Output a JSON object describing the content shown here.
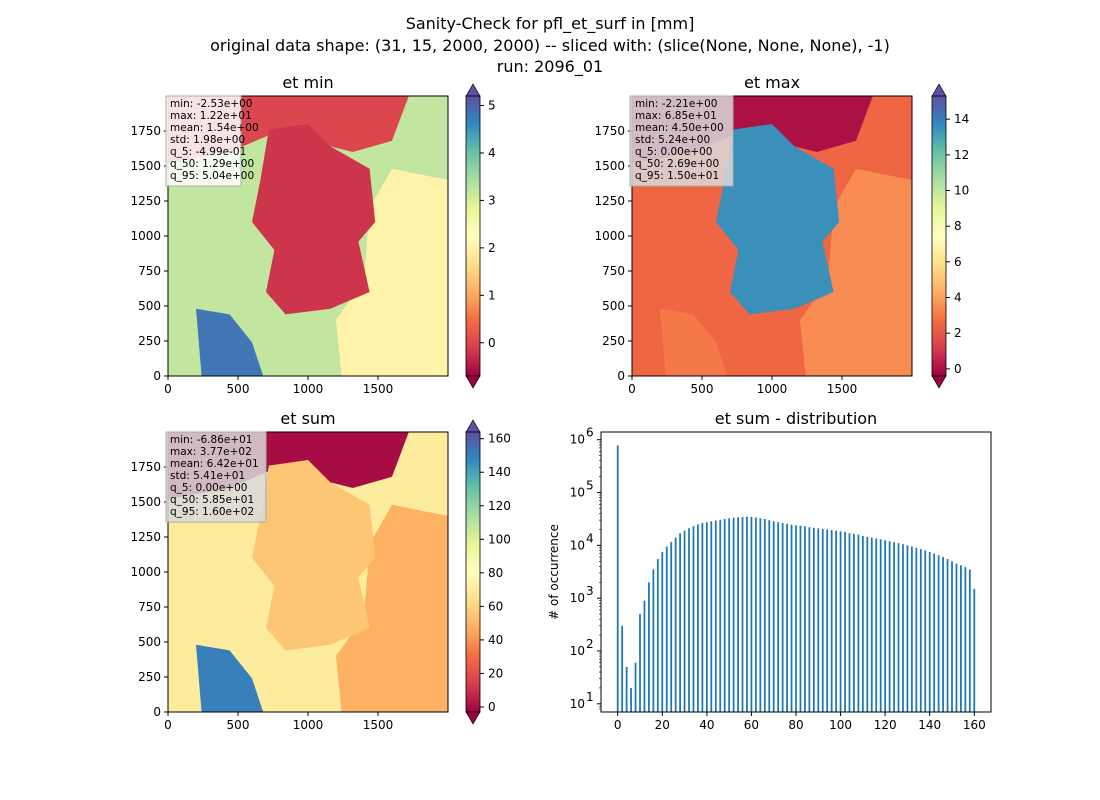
{
  "figure": {
    "title_lines": [
      "Sanity-Check for pfl_et_surf in [mm]",
      "original data shape: (31, 15, 2000, 2000) -- sliced with: (slice(None, None, None), -1)",
      "run: 2096_01"
    ]
  },
  "colormap": [
    "#9e0142",
    "#d53e4f",
    "#f46d43",
    "#fdae61",
    "#fee08b",
    "#ffffbf",
    "#e6f598",
    "#abdda4",
    "#66c2a5",
    "#3288bd",
    "#5e4fa2"
  ],
  "chart_data": [
    {
      "type": "heatmap",
      "title": "et min",
      "xlim": [
        0,
        2000
      ],
      "ylim": [
        0,
        2000
      ],
      "xticks": [
        0,
        500,
        1000,
        1500
      ],
      "yticks": [
        0,
        250,
        500,
        750,
        1000,
        1250,
        1500,
        1750
      ],
      "colorbar": {
        "vmin": -0.7,
        "vmax": 5.2,
        "ticks": [
          0,
          1,
          2,
          3,
          4,
          5
        ]
      },
      "region_values": {
        "sea_north": 0.0,
        "sea_south": 4.8,
        "land_west": 3.2,
        "land_east": 2.0,
        "germany": -0.2
      },
      "stats": {
        "min": "-2.53e+00",
        "max": "1.22e+01",
        "mean": "1.54e+00",
        "std": "1.98e+00",
        "q_5": "-4.99e-01",
        "q_50": "1.29e+00",
        "q_95": "5.04e+00"
      },
      "stats_box_color": "#ffffff"
    },
    {
      "type": "heatmap",
      "title": "et max",
      "xlim": [
        0,
        2000
      ],
      "ylim": [
        0,
        2000
      ],
      "xticks": [
        0,
        500,
        1000,
        1500
      ],
      "yticks": [
        0,
        250,
        500,
        750,
        1000,
        1250,
        1500,
        1750
      ],
      "colorbar": {
        "vmin": -0.4,
        "vmax": 15.3,
        "ticks": [
          0,
          2,
          4,
          6,
          8,
          10,
          12,
          14
        ]
      },
      "region_values": {
        "sea_north": 0.0,
        "sea_south": 3.0,
        "land_west": 2.5,
        "land_east": 3.5,
        "germany": 13.5
      },
      "stats": {
        "min": "-2.21e+00",
        "max": "6.85e+01",
        "mean": "4.50e+00",
        "std": "5.24e+00",
        "q_5": "0.00e+00",
        "q_50": "2.69e+00",
        "q_95": "1.50e+01"
      },
      "stats_box_color": "#d9d9d9"
    },
    {
      "type": "heatmap",
      "title": "et sum",
      "xlim": [
        0,
        2000
      ],
      "ylim": [
        0,
        2000
      ],
      "xticks": [
        0,
        500,
        1000,
        1500
      ],
      "yticks": [
        0,
        250,
        500,
        750,
        1000,
        1250,
        1500,
        1750
      ],
      "colorbar": {
        "vmin": -3,
        "vmax": 164,
        "ticks": [
          0,
          20,
          40,
          60,
          80,
          100,
          120,
          140,
          160
        ]
      },
      "region_values": {
        "sea_north": 0.0,
        "sea_south": 150.0,
        "land_west": 70.0,
        "land_east": 48.0,
        "germany": 55.0
      },
      "stats": {
        "min": "-6.86e+01",
        "max": "3.77e+02",
        "mean": "6.42e+01",
        "std": "5.41e+01",
        "q_5": "0.00e+00",
        "q_50": "5.85e+01",
        "q_95": "1.60e+02"
      },
      "stats_box_color": "#d9d9d9"
    },
    {
      "type": "bar",
      "title": "et sum - distribution",
      "xlabel": "",
      "ylabel": "# of occurrence",
      "yscale": "log",
      "xlim": [
        -7.5,
        167.5
      ],
      "ylim": [
        7,
        1400000
      ],
      "xticks": [
        0,
        20,
        40,
        60,
        80,
        100,
        120,
        140,
        160
      ],
      "yticks": [
        {
          "value": 10,
          "label": "10",
          "sup": "1"
        },
        {
          "value": 100,
          "label": "10",
          "sup": "2"
        },
        {
          "value": 1000,
          "label": "10",
          "sup": "3"
        },
        {
          "value": 10000,
          "label": "10",
          "sup": "4"
        },
        {
          "value": 100000,
          "label": "10",
          "sup": "5"
        },
        {
          "value": 1000000,
          "label": "10",
          "sup": "6"
        }
      ],
      "bar_color": "#1f77b4",
      "bin_width": 0.8,
      "bins": [
        [
          0,
          780000
        ],
        [
          2,
          300
        ],
        [
          4,
          50
        ],
        [
          6,
          20
        ],
        [
          8,
          60
        ],
        [
          10,
          500
        ],
        [
          12,
          900
        ],
        [
          14,
          2000
        ],
        [
          16,
          3500
        ],
        [
          18,
          5500
        ],
        [
          20,
          7500
        ],
        [
          22,
          9500
        ],
        [
          24,
          11500
        ],
        [
          26,
          14000
        ],
        [
          28,
          17000
        ],
        [
          30,
          19000
        ],
        [
          32,
          21000
        ],
        [
          34,
          23000
        ],
        [
          36,
          25000
        ],
        [
          38,
          26500
        ],
        [
          40,
          27500
        ],
        [
          42,
          28500
        ],
        [
          44,
          29500
        ],
        [
          46,
          30500
        ],
        [
          48,
          31500
        ],
        [
          50,
          32500
        ],
        [
          52,
          33500
        ],
        [
          54,
          34000
        ],
        [
          56,
          34500
        ],
        [
          58,
          35000
        ],
        [
          60,
          34500
        ],
        [
          62,
          33500
        ],
        [
          64,
          32500
        ],
        [
          66,
          31500
        ],
        [
          68,
          30000
        ],
        [
          70,
          28500
        ],
        [
          72,
          27500
        ],
        [
          74,
          26500
        ],
        [
          76,
          25500
        ],
        [
          78,
          24500
        ],
        [
          80,
          24000
        ],
        [
          82,
          23500
        ],
        [
          84,
          23000
        ],
        [
          86,
          22000
        ],
        [
          88,
          21500
        ],
        [
          90,
          21000
        ],
        [
          92,
          20500
        ],
        [
          94,
          20000
        ],
        [
          96,
          19500
        ],
        [
          98,
          19000
        ],
        [
          100,
          18500
        ],
        [
          102,
          18000
        ],
        [
          104,
          17000
        ],
        [
          106,
          16500
        ],
        [
          108,
          16000
        ],
        [
          110,
          15000
        ],
        [
          112,
          14500
        ],
        [
          114,
          14000
        ],
        [
          116,
          13500
        ],
        [
          118,
          13000
        ],
        [
          120,
          12500
        ],
        [
          122,
          12000
        ],
        [
          124,
          11500
        ],
        [
          126,
          11000
        ],
        [
          128,
          10500
        ],
        [
          130,
          10000
        ],
        [
          132,
          9500
        ],
        [
          134,
          9000
        ],
        [
          136,
          8500
        ],
        [
          138,
          8000
        ],
        [
          140,
          7500
        ],
        [
          142,
          7000
        ],
        [
          144,
          6500
        ],
        [
          146,
          6000
        ],
        [
          148,
          5500
        ],
        [
          150,
          5000
        ],
        [
          152,
          4500
        ],
        [
          154,
          4200
        ],
        [
          156,
          3900
        ],
        [
          158,
          3500
        ],
        [
          160,
          1500
        ]
      ]
    }
  ]
}
